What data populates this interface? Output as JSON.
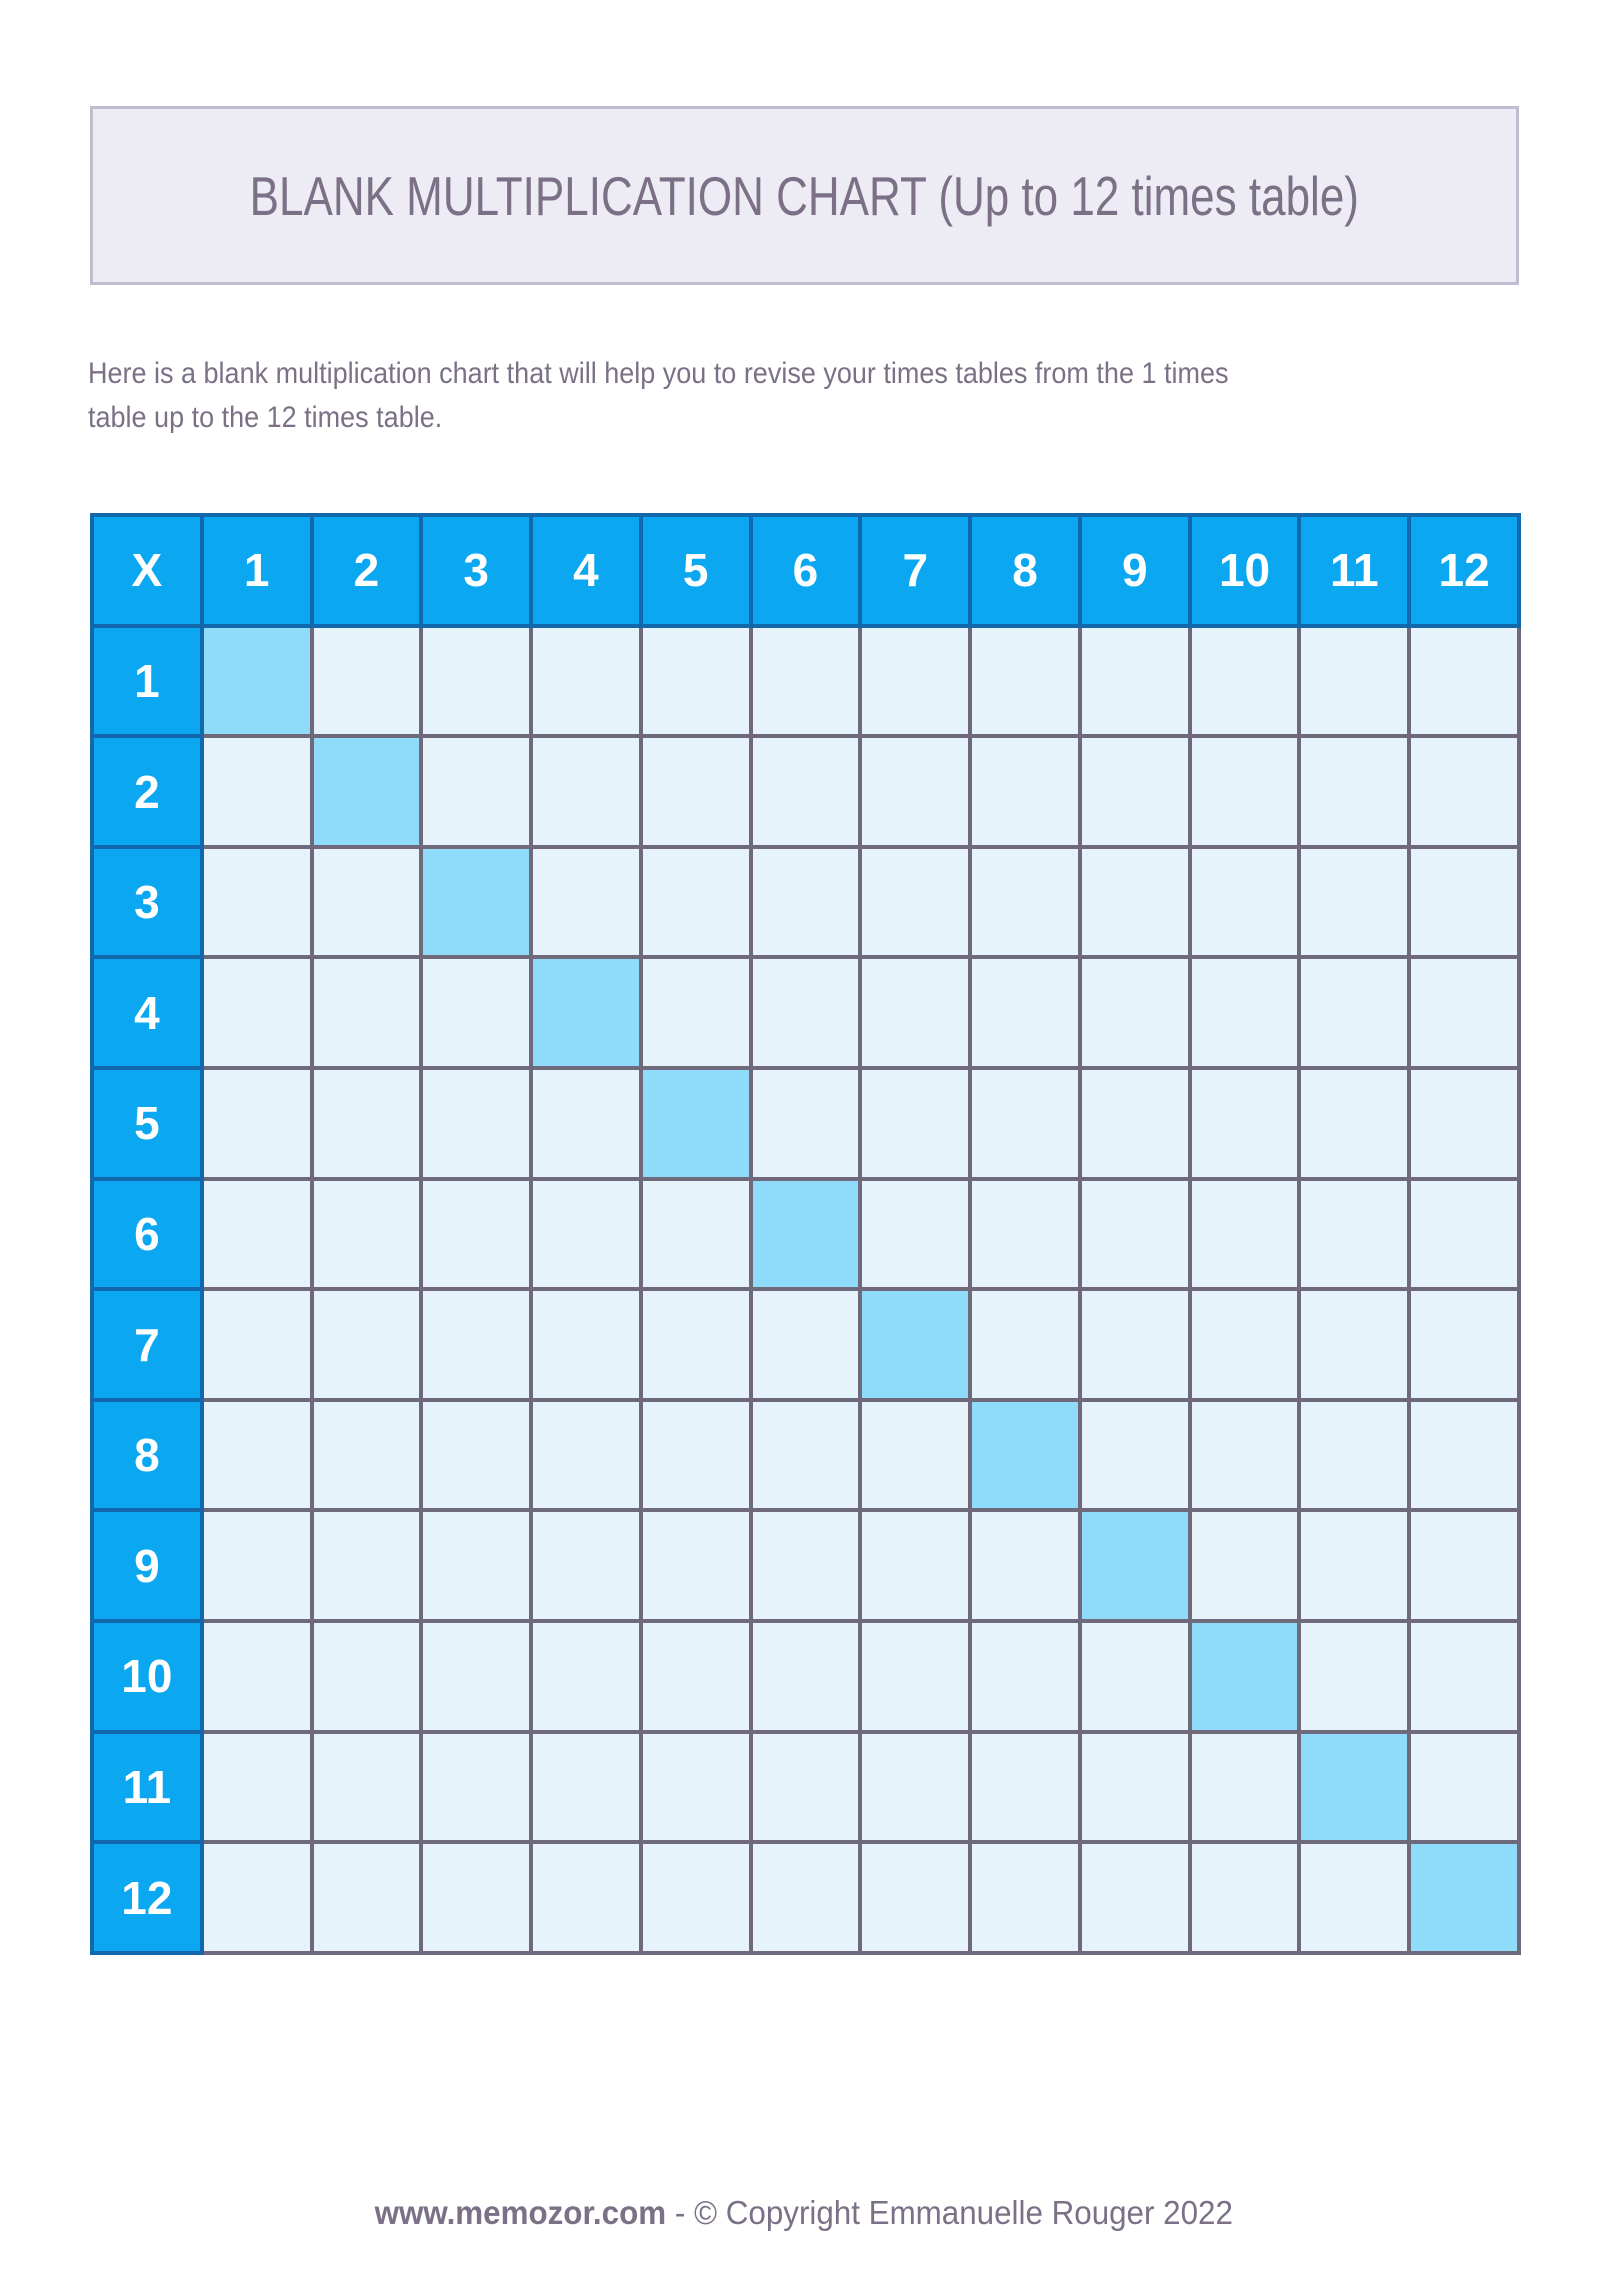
{
  "title_box": {
    "title": "BLANK MULTIPLICATION CHART (Up to 12 times table)"
  },
  "intro": {
    "line1": "Here is a blank multiplication chart that will help you to revise your times tables from the 1 times",
    "line2": "table up to the 12 times table."
  },
  "table": {
    "corner_label": "X",
    "column_headers": [
      "1",
      "2",
      "3",
      "4",
      "5",
      "6",
      "7",
      "8",
      "9",
      "10",
      "11",
      "12"
    ],
    "row_headers": [
      "1",
      "2",
      "3",
      "4",
      "5",
      "6",
      "7",
      "8",
      "9",
      "10",
      "11",
      "12"
    ],
    "rows": 12,
    "cols": 12,
    "cells_blank": true,
    "highlighted_diagonal": true
  },
  "footer": {
    "site": "www.memozor.com",
    "separator": " - ",
    "copyright": "© Copyright Emmanuelle Rouger 2022"
  },
  "colors": {
    "header-bg": "#0ba7f0",
    "header-border": "#1368ab",
    "cell-bg": "#e6f3fb",
    "cell-highlight": "#8edcfa",
    "grid": "#6f6a7b",
    "text": "#7b7086",
    "box-bg": "#edecf4",
    "box-border": "#c0bdd0",
    "page-bg": "#ffffff"
  }
}
